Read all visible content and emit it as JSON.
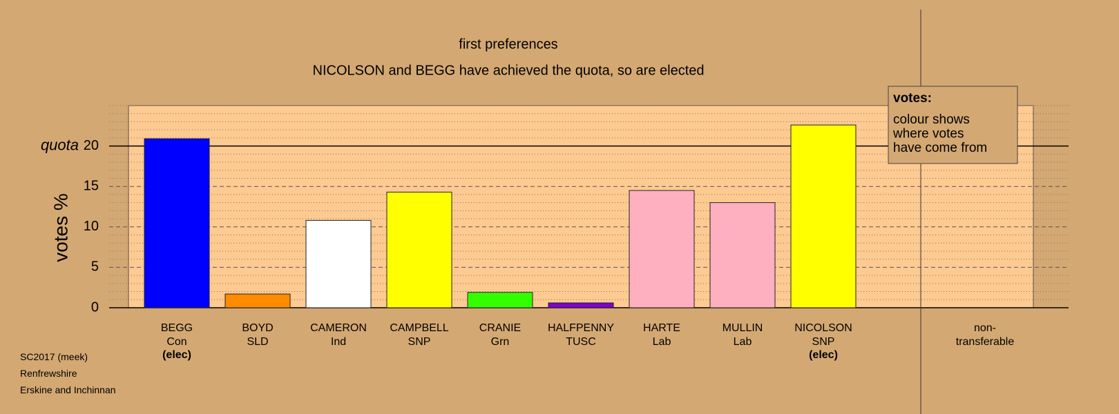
{
  "chart_data": {
    "type": "bar",
    "title": "first preferences",
    "subtitle": "NICOLSON and BEGG have achieved the quota, so are elected",
    "y_label": "votes %",
    "categories": [
      "BEGG",
      "BOYD",
      "CAMERON",
      "CAMPBELL",
      "CRANIE",
      "HALFPENNY",
      "HARTE",
      "MULLIN",
      "NICOLSON",
      "non-transferable"
    ],
    "parties": [
      "Con",
      "SLD",
      "Ind",
      "SNP",
      "Grn",
      "TUSC",
      "Lab",
      "Lab",
      "SNP",
      null
    ],
    "status": [
      "(elec)",
      null,
      null,
      null,
      null,
      null,
      null,
      null,
      "(elec)",
      null
    ],
    "values": [
      20.9,
      1.7,
      10.8,
      14.3,
      1.9,
      0.6,
      14.5,
      13.0,
      22.6,
      0
    ],
    "colors": [
      "#0000ff",
      "#ff8c00",
      "#ffffff",
      "#ffff00",
      "#33ff00",
      "#8000d0",
      "#ffb0c0",
      "#ffb0c0",
      "#ffff00",
      null
    ],
    "ylim": [
      0,
      25
    ],
    "yticks": [
      0,
      5,
      10,
      15,
      20
    ],
    "minor_yticks": [
      1,
      2,
      3,
      4,
      6,
      7,
      8,
      9,
      11,
      12,
      13,
      14,
      16,
      17,
      18,
      19,
      21,
      22,
      23,
      24,
      25
    ],
    "quota": 20,
    "quota_label": "quota",
    "legend": {
      "title": "votes:",
      "lines": [
        "colour shows",
        "where votes",
        "have come from"
      ]
    },
    "footer": [
      "SC2017 (meek)",
      "Renfrewshire",
      "Erskine and Inchinnan"
    ]
  }
}
